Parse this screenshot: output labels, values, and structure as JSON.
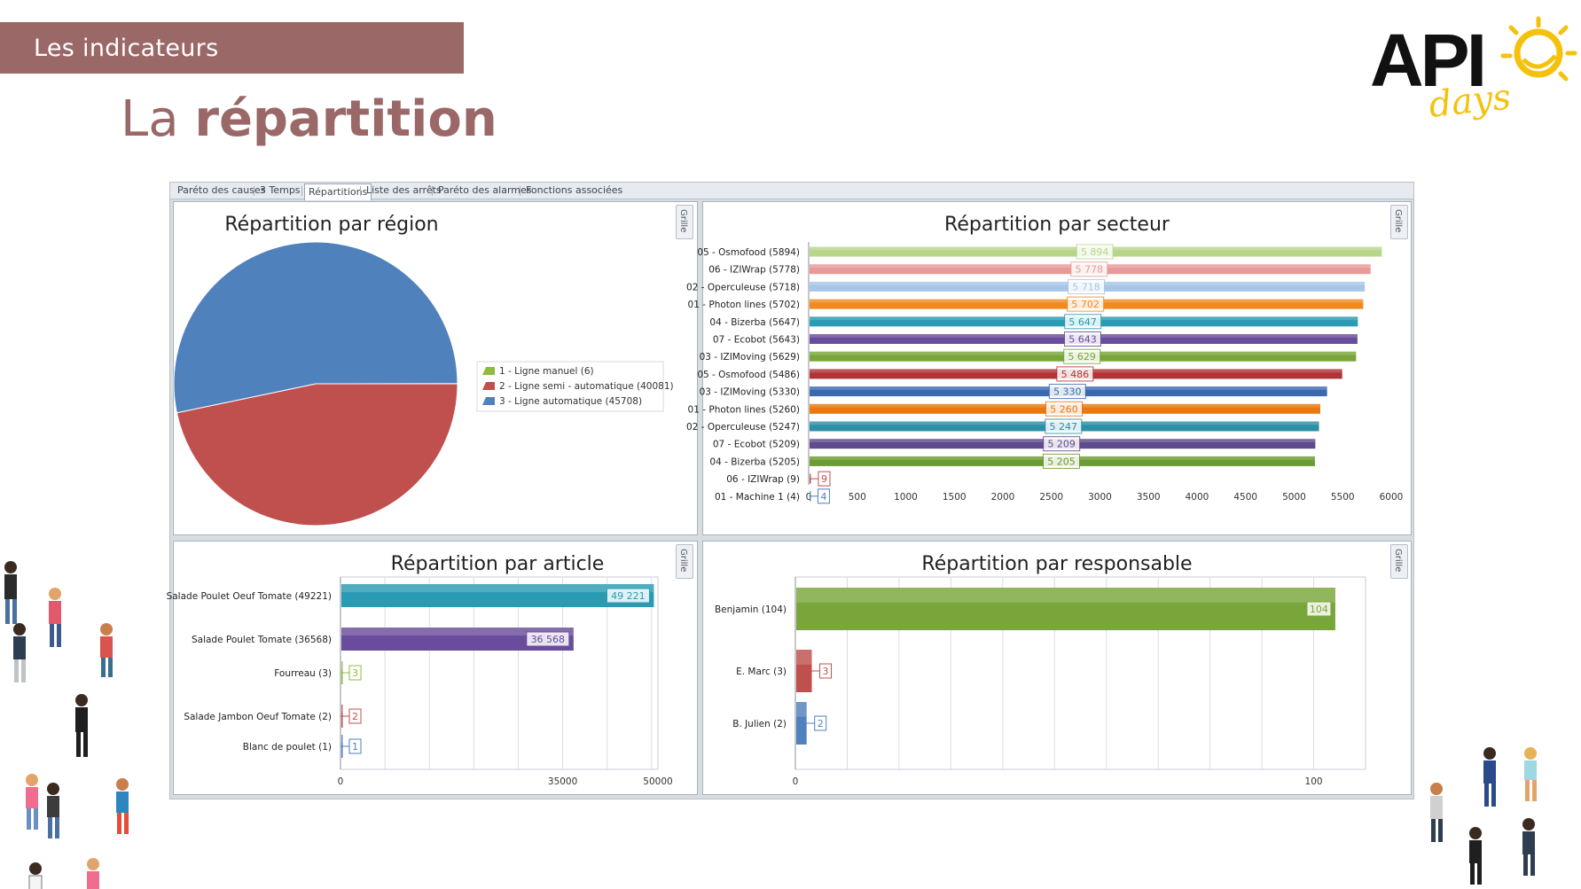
{
  "slide": {
    "section_label": "Les indicateurs",
    "title_light": "La ",
    "title_bold": "répartition",
    "logo_text": "API",
    "logo_script": "days"
  },
  "tabs": [
    {
      "label": "Paréto des causes",
      "active": false
    },
    {
      "label": "3 Temps",
      "active": false
    },
    {
      "label": "Répartitions",
      "active": true
    },
    {
      "label": "Liste des arrêts",
      "active": false
    },
    {
      "label": "Paréto des alarmes",
      "active": false
    },
    {
      "label": "Fonctions associées",
      "active": false
    }
  ],
  "grille_label": "Grille",
  "colors": {
    "accent": "#9b6868",
    "logo_yellow": "#f4c20d",
    "pie_green": "#8fbc3f",
    "pie_red": "#c0504d",
    "pie_blue": "#4f81bd"
  },
  "chart_data": [
    {
      "type": "pie",
      "title": "Répartition par région",
      "legend_position": "right",
      "slices": [
        {
          "label": "1 - Ligne manuel (6)",
          "value": 6,
          "color": "#8fbc3f"
        },
        {
          "label": "2 - Ligne semi - automatique (40081)",
          "value": 40081,
          "color": "#c0504d"
        },
        {
          "label": "3 - Ligne automatique (45708)",
          "value": 45708,
          "color": "#4f81bd"
        }
      ]
    },
    {
      "type": "bar",
      "orientation": "horizontal",
      "title": "Répartition par secteur",
      "xlim": [
        0,
        6000
      ],
      "xticks": [
        "0",
        "500",
        "1000",
        "1500",
        "2000",
        "2500",
        "3000",
        "3500",
        "4000",
        "4500",
        "5000",
        "5500",
        "6000"
      ],
      "grid": false,
      "categories": [
        "05 - Osmofood (5894)",
        "06 - IZIWrap (5778)",
        "02 - Operculeuse (5718)",
        "01 - Photon lines (5702)",
        "04 - Bizerba (5647)",
        "07 - Ecobot (5643)",
        "03 - IZIMoving (5629)",
        "05 - Osmofood (5486)",
        "03 - IZIMoving (5330)",
        "01 - Photon lines (5260)",
        "02 - Operculeuse (5247)",
        "07 - Ecobot (5209)",
        "04 - Bizerba (5205)",
        "06 - IZIWrap (9)",
        "01 - Machine 1 (4)"
      ],
      "values": [
        5894,
        5778,
        5718,
        5702,
        5647,
        5643,
        5629,
        5486,
        5330,
        5260,
        5247,
        5209,
        5205,
        9,
        4
      ],
      "value_labels": [
        "5 894",
        "5 778",
        "5 718",
        "5 702",
        "5 647",
        "5 643",
        "5 629",
        "5 486",
        "5 330",
        "5 260",
        "5 247",
        "5 209",
        "5 205",
        "9",
        "4"
      ],
      "colors": [
        "#b8d68a",
        "#e89a9a",
        "#a8c6e8",
        "#f08a1e",
        "#2a9bb3",
        "#6a4c9c",
        "#79a63a",
        "#b03434",
        "#3a69b0",
        "#e8780f",
        "#2d8fa8",
        "#5f4a8b",
        "#6c9a34",
        "#c0504d",
        "#4f81bd"
      ]
    },
    {
      "type": "bar",
      "orientation": "horizontal",
      "title": "Répartition par article",
      "xlim": [
        0,
        50000
      ],
      "xticks": [
        "0",
        "35000",
        "50000"
      ],
      "xtick_values": [
        0,
        35000,
        50000
      ],
      "grid": true,
      "categories": [
        "Salade Poulet Oeuf Tomate (49221)",
        "Salade Poulet Tomate (36568)",
        "Fourreau (3)",
        "Salade Jambon Oeuf Tomate (2)",
        "Blanc de poulet (1)"
      ],
      "values": [
        49221,
        36568,
        3,
        2,
        1
      ],
      "value_labels": [
        "49 221",
        "36 568",
        "3",
        "2",
        "1"
      ],
      "colors": [
        "#2a9bb3",
        "#6a4c9c",
        "#8fbc3f",
        "#c0504d",
        "#4f81bd"
      ]
    },
    {
      "type": "bar",
      "orientation": "horizontal",
      "title": "Répartition par responsable",
      "xlim": [
        0,
        110
      ],
      "xticks": [
        "0",
        "100"
      ],
      "xtick_values": [
        0,
        100
      ],
      "grid": true,
      "categories": [
        "Benjamin (104)",
        "E. Marc (3)",
        "B. Julien (2)"
      ],
      "values": [
        104,
        3,
        2
      ],
      "value_labels": [
        "104",
        "3",
        "2"
      ],
      "colors": [
        "#79a63a",
        "#c0504d",
        "#4f81bd"
      ]
    }
  ]
}
